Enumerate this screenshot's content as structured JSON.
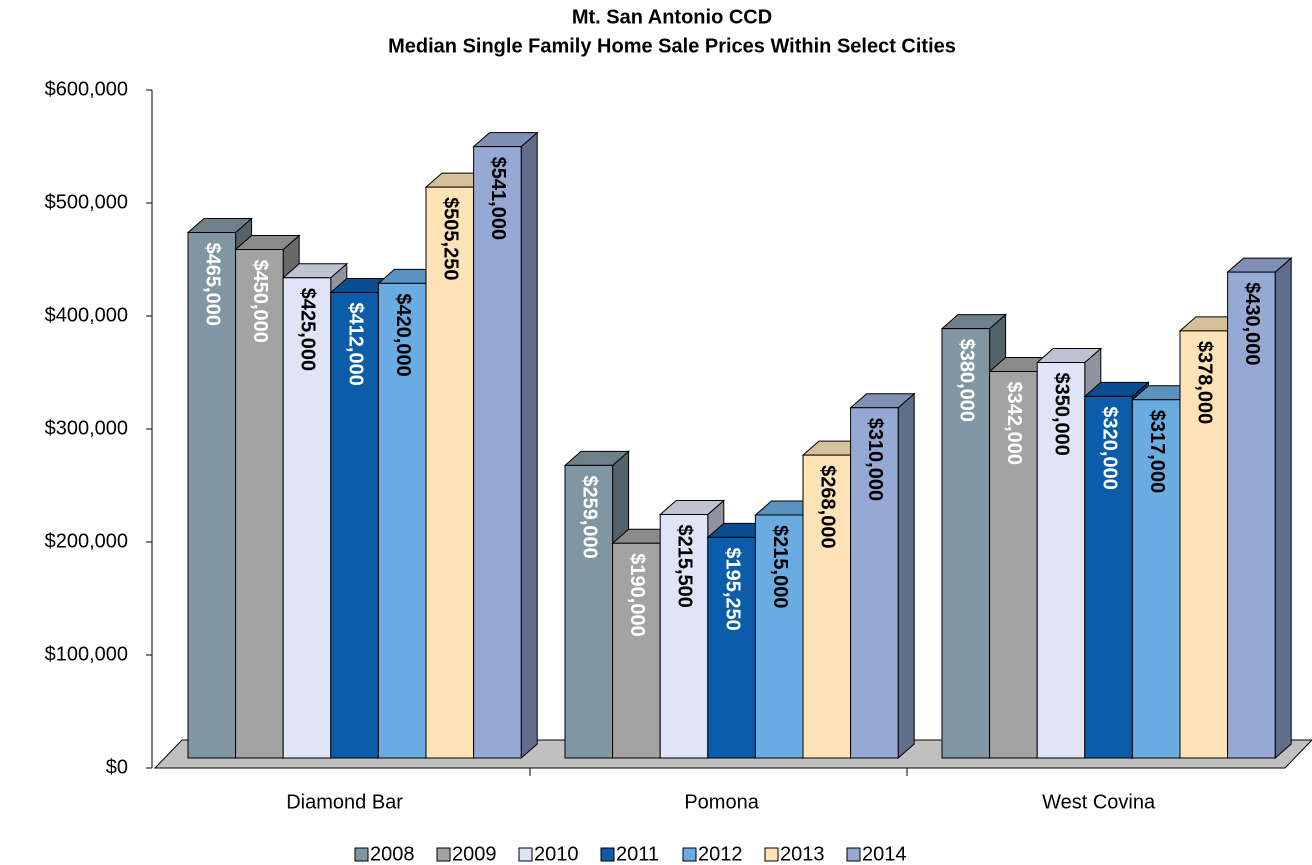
{
  "chart_data": {
    "type": "bar",
    "title": "Mt. San Antonio CCD",
    "subtitle": "Median Single Family Home Sale Prices Within Select Cities",
    "categories": [
      "Diamond Bar",
      "Pomona",
      "West Covina"
    ],
    "ylim": [
      0,
      600000
    ],
    "yticks": [
      {
        "value": 0,
        "label": "$0"
      },
      {
        "value": 100000,
        "label": "$100,000"
      },
      {
        "value": 200000,
        "label": "$200,000"
      },
      {
        "value": 300000,
        "label": "$300,000"
      },
      {
        "value": 400000,
        "label": "$400,000"
      },
      {
        "value": 500000,
        "label": "$500,000"
      },
      {
        "value": 600000,
        "label": "$600,000"
      }
    ],
    "series": [
      {
        "name": "2008",
        "color": "#8196a3",
        "label_color": "#ffffff",
        "values": [
          465000,
          259000,
          380000
        ],
        "value_labels": [
          "$465,000",
          "$259,000",
          "$380,000"
        ]
      },
      {
        "name": "2009",
        "color": "#a3a3a3",
        "label_color": "#ffffff",
        "values": [
          450000,
          190000,
          342000
        ],
        "value_labels": [
          "$450,000",
          "$190,000",
          "$342,000"
        ]
      },
      {
        "name": "2010",
        "color": "#dfe4f6",
        "label_color": "#000000",
        "values": [
          425000,
          215500,
          350000
        ],
        "value_labels": [
          "$425,000",
          "$215,500",
          "$350,000"
        ]
      },
      {
        "name": "2011",
        "color": "#0b5ca9",
        "label_color": "#ffffff",
        "values": [
          412000,
          195250,
          320000
        ],
        "value_labels": [
          "$412,000",
          "$195,250",
          "$320,000"
        ]
      },
      {
        "name": "2012",
        "color": "#6aace2",
        "label_color": "#000000",
        "values": [
          420000,
          215000,
          317000
        ],
        "value_labels": [
          "$420,000",
          "$215,000",
          "$317,000"
        ]
      },
      {
        "name": "2013",
        "color": "#fde3b6",
        "label_color": "#000000",
        "values": [
          505250,
          268000,
          378000
        ],
        "value_labels": [
          "$505,250",
          "$268,000",
          "$378,000"
        ]
      },
      {
        "name": "2014",
        "color": "#95a9d4",
        "label_color": "#000000",
        "values": [
          541000,
          310000,
          430000
        ],
        "value_labels": [
          "$541,000",
          "$310,000",
          "$430,000"
        ]
      }
    ]
  }
}
